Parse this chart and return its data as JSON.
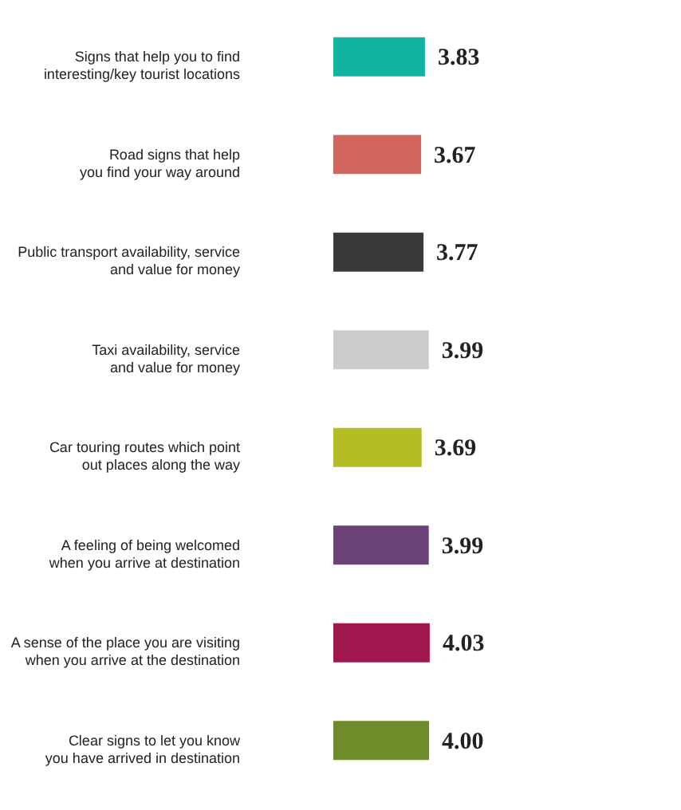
{
  "chart_data": {
    "type": "bar",
    "orientation": "horizontal",
    "tick_labels": "y",
    "categories": [
      "Signs that help you to find\ninteresting/key tourist locations",
      "Road signs that help\nyou find your way around",
      "Public transport availability, service\nand value for money",
      "Taxi availability, service\nand value for money",
      "Car touring routes which point\nout places along the way",
      "A feeling of being welcomed\nwhen you arrive at destination",
      "A sense of the place you are visiting\nwhen you arrive at the destination",
      "Clear signs to let you know\nyou have arrived in destination"
    ],
    "values": [
      3.83,
      3.67,
      3.77,
      3.99,
      3.69,
      3.99,
      4.03,
      4.0
    ],
    "value_labels": [
      "3.83",
      "3.67",
      "3.77",
      "3.99",
      "3.69",
      "3.99",
      "4.03",
      "4.00"
    ],
    "colors": [
      "#12b3a0",
      "#d2645e",
      "#3a3a3a",
      "#cccccc",
      "#b5bd25",
      "#6b4378",
      "#a0174e",
      "#6e8c2a"
    ]
  }
}
